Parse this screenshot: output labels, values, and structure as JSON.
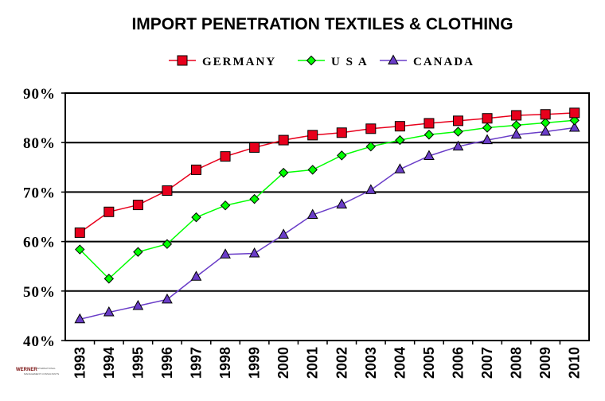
{
  "chart_data": {
    "type": "line",
    "title": "IMPORT PENETRATION TEXTILES & CLOTHING",
    "xlabel": "",
    "ylabel": "",
    "categories": [
      "1993",
      "1994",
      "1995",
      "1996",
      "1997",
      "1998",
      "1999",
      "2000",
      "2001",
      "2002",
      "2003",
      "2004",
      "2005",
      "2006",
      "2007",
      "2008",
      "2009",
      "2010"
    ],
    "ylim": [
      40,
      90
    ],
    "yticks": [
      "90%",
      "80%",
      "70%",
      "60%",
      "50%",
      "40%"
    ],
    "ytick_values": [
      90,
      80,
      70,
      60,
      50,
      40
    ],
    "grid": "horizontal",
    "legend_position": "top",
    "series": [
      {
        "name": "GERMANY",
        "color": "#e8001c",
        "marker": "square",
        "values": [
          61.8,
          66.0,
          67.4,
          70.3,
          74.5,
          77.2,
          79.0,
          80.5,
          81.5,
          82.0,
          82.8,
          83.3,
          83.9,
          84.4,
          84.9,
          85.5,
          85.7,
          86.0
        ]
      },
      {
        "name": "USA",
        "color": "#00ff00",
        "marker": "diamond",
        "values": [
          58.4,
          52.5,
          57.9,
          59.5,
          64.9,
          67.3,
          68.6,
          73.9,
          74.5,
          77.4,
          79.2,
          80.5,
          81.6,
          82.2,
          83.0,
          83.5,
          84.0,
          84.5
        ]
      },
      {
        "name": "CANADA",
        "color": "#6a3dc8",
        "marker": "triangle",
        "values": [
          44.3,
          45.7,
          47.0,
          48.3,
          52.9,
          57.4,
          57.6,
          61.4,
          65.4,
          67.5,
          70.4,
          74.6,
          77.3,
          79.2,
          80.5,
          81.6,
          82.2,
          83.0
        ]
      }
    ]
  },
  "logo": {
    "name": "WERNER",
    "line1": "INTERNATIONAL",
    "line2": "MANAGEMENT CONSULTANTS"
  }
}
